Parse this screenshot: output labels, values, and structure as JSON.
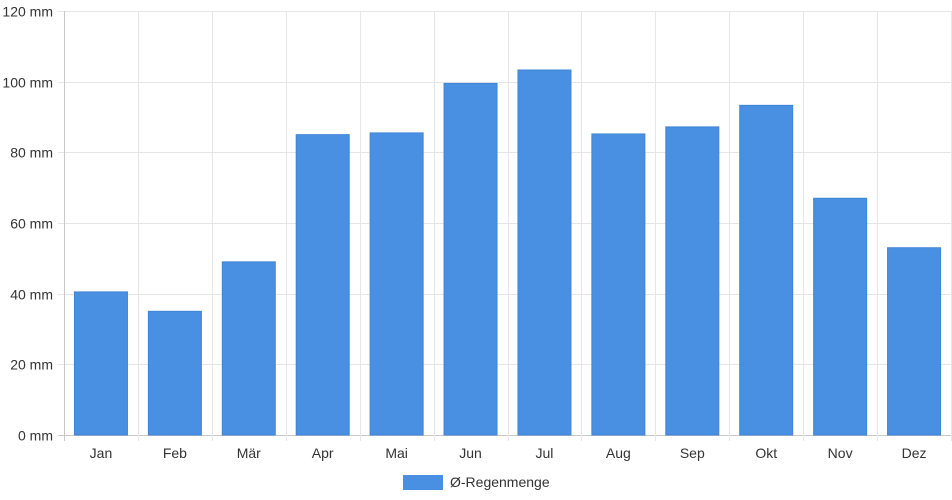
{
  "chart_data": {
    "type": "bar",
    "categories": [
      "Jan",
      "Feb",
      "Mär",
      "Apr",
      "Mai",
      "Jun",
      "Jul",
      "Aug",
      "Sep",
      "Okt",
      "Nov",
      "Dez"
    ],
    "series": [
      {
        "name": "Ø-Regenmenge",
        "values": [
          40.5,
          35.0,
          49.0,
          85.0,
          85.5,
          99.5,
          103.3,
          85.2,
          87.2,
          93.3,
          67.0,
          53.0
        ],
        "color": "#4a90e2"
      }
    ],
    "y_ticks": [
      "0 mm",
      "20 mm",
      "40 mm",
      "60 mm",
      "80 mm",
      "100 mm",
      "120 mm"
    ],
    "ylim": [
      0,
      120
    ],
    "y_unit": "mm",
    "grid": true,
    "legend_position": "bottom-center"
  }
}
